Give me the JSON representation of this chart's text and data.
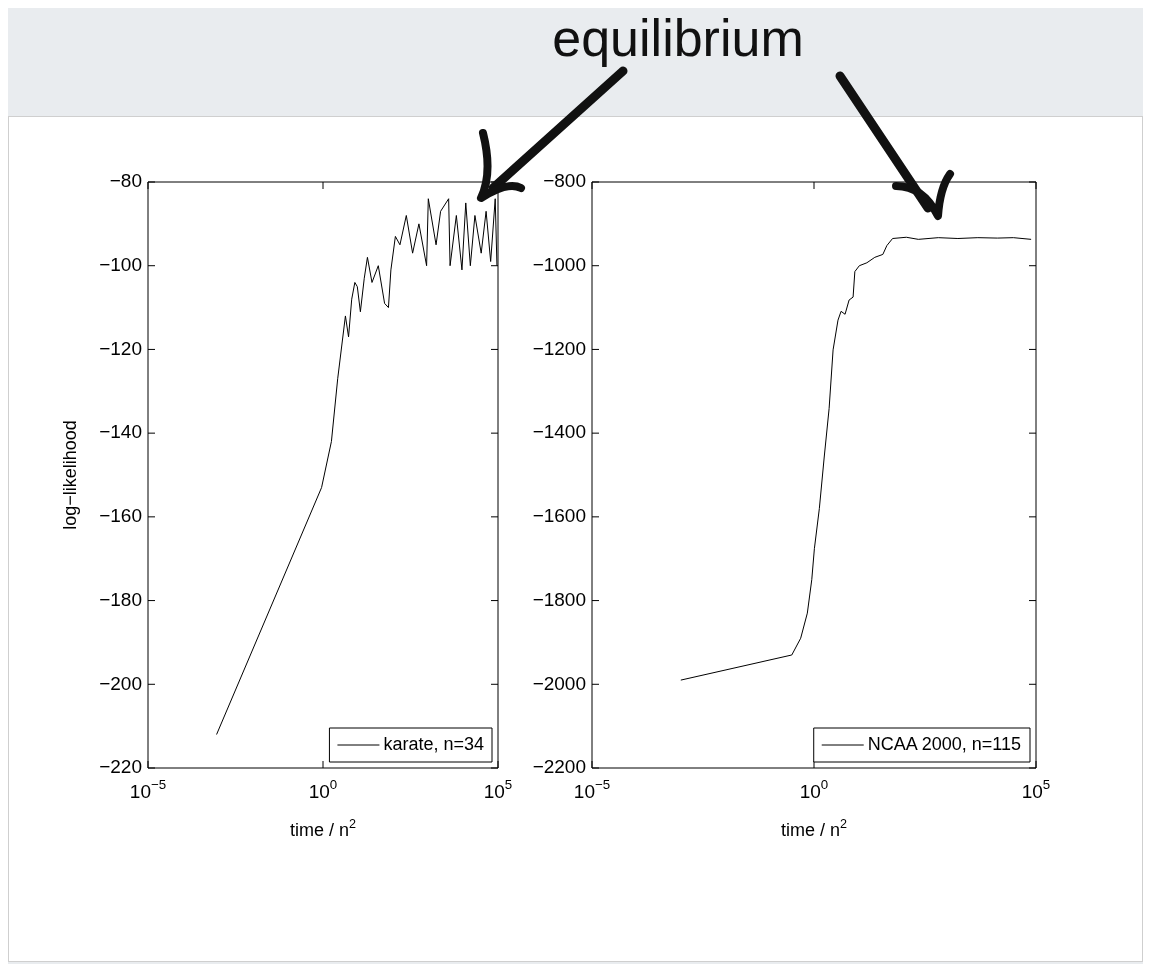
{
  "chart_data": [
    {
      "type": "line",
      "ylabel": "log−likelihood",
      "xlabel": "time / n$^{2}$",
      "annotations": [
        "equilibrium"
      ],
      "log": "x",
      "legend": "bottom right",
      "marker": "none",
      "line_style": "solid",
      "xlim": [
        1e-05,
        100000
      ],
      "xticks": [
        {
          "value": 1e-05,
          "label": "10$^{−5}$"
        },
        {
          "value": 1,
          "label": "10$^{0}$"
        },
        {
          "value": 100000,
          "label": "10$^{5}$"
        }
      ],
      "ylim": [
        -220,
        -80
      ],
      "yticks": [
        {
          "value": -220,
          "label": "−220"
        },
        {
          "value": -200,
          "label": "−200"
        },
        {
          "value": -180,
          "label": "−180"
        },
        {
          "value": -160,
          "label": "−160"
        },
        {
          "value": -140,
          "label": "−140"
        },
        {
          "value": -120,
          "label": "−120"
        },
        {
          "value": -100,
          "label": "−100"
        },
        {
          "value": -80,
          "label": "−80"
        }
      ],
      "series": [
        {
          "name": "karate, n=34",
          "color": "#000000",
          "x": [
            0.00091,
            0.91,
            1.74,
            2.63,
            4.37,
            5.37,
            6.61,
            8.13,
            9.55,
            11.7,
            15.1,
            18.6,
            25.1,
            38.0,
            57.5,
            74.1,
            87.1,
            117,
            158,
            240,
            363,
            550,
            912,
            1020,
            1700,
            2290,
            3890,
            4270,
            6460,
            9330,
            12000,
            16200,
            21900,
            33100,
            45700,
            61700,
            83200,
            93300
          ],
          "values": [
            -212,
            -153,
            -142,
            -127,
            -112,
            -117,
            -108,
            -104,
            -105,
            -111,
            -103,
            -98,
            -104,
            -100,
            -109,
            -110,
            -101,
            -93,
            -95,
            -88,
            -97,
            -90,
            -100,
            -84,
            -95,
            -87,
            -84,
            -100,
            -88,
            -101,
            -85,
            -100,
            -88,
            -97,
            -87,
            -99,
            -84,
            -100
          ]
        }
      ]
    },
    {
      "type": "line",
      "xlabel": "time / n$^{2}$",
      "log": "x",
      "legend": "bottom right",
      "marker": "none",
      "line_style": "solid",
      "xlim": [
        1e-05,
        100000
      ],
      "xticks": [
        {
          "value": 1e-05,
          "label": "10$^{−5}$"
        },
        {
          "value": 1,
          "label": "10$^{0}$"
        },
        {
          "value": 100000,
          "label": "10$^{5}$"
        }
      ],
      "ylim": [
        -2200,
        -800
      ],
      "yticks": [
        {
          "value": -2200,
          "label": "−2200"
        },
        {
          "value": -2000,
          "label": "−2000"
        },
        {
          "value": -1800,
          "label": "−1800"
        },
        {
          "value": -1600,
          "label": "−1600"
        },
        {
          "value": -1400,
          "label": "−1400"
        },
        {
          "value": -1200,
          "label": "−1200"
        },
        {
          "value": -1000,
          "label": "−1000"
        },
        {
          "value": -800,
          "label": "−800"
        }
      ],
      "series": [
        {
          "name": "NCAA 2000, n=115",
          "color": "#000000",
          "x": [
            0.001,
            0.316,
            0.501,
            0.708,
            0.891,
            1.02,
            1.32,
            1.7,
            2.19,
            2.69,
            3.47,
            4.07,
            5.01,
            6.17,
            7.59,
            8.32,
            10.5,
            15.5,
            23.4,
            35.5,
            43.7,
            58.9,
            120,
            224,
            631,
            1740,
            4900,
            13500,
            30900,
            77600
          ],
          "values": [
            -1990,
            -1930,
            -1890,
            -1830,
            -1750,
            -1676,
            -1580,
            -1457,
            -1341,
            -1201,
            -1130,
            -1109,
            -1116,
            -1082,
            -1075,
            -1014,
            -1000,
            -993,
            -980,
            -973,
            -952,
            -935,
            -932,
            -937,
            -933,
            -935,
            -933,
            -934,
            -933,
            -937
          ]
        }
      ]
    }
  ]
}
